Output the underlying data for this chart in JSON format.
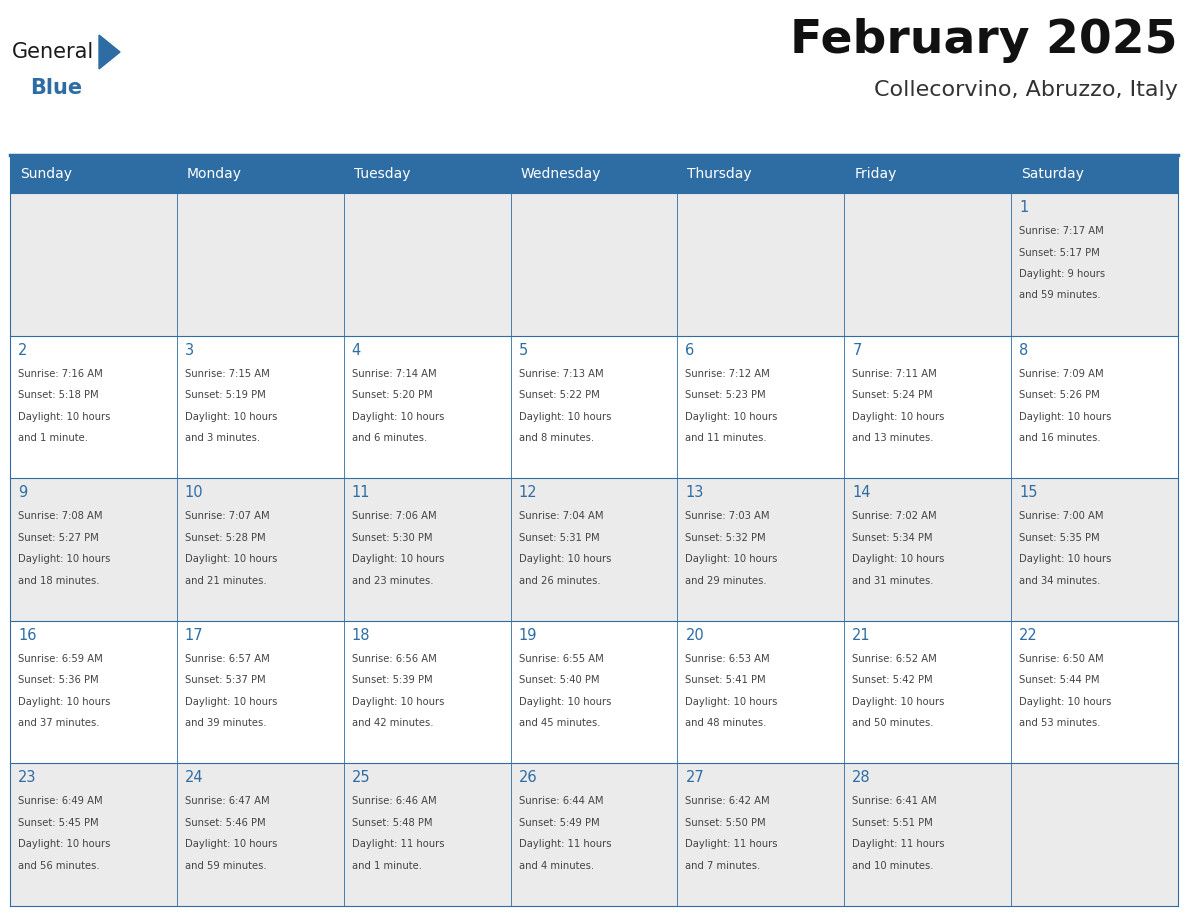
{
  "title": "February 2025",
  "subtitle": "Collecorvino, Abruzzo, Italy",
  "header_bg": "#2E6DA4",
  "header_text_color": "#FFFFFF",
  "days_of_week": [
    "Sunday",
    "Monday",
    "Tuesday",
    "Wednesday",
    "Thursday",
    "Friday",
    "Saturday"
  ],
  "row1_bg": "#EBEBEB",
  "row2_bg": "#FFFFFF",
  "cell_border_color": "#2E6DA4",
  "day_num_color": "#2E6DA4",
  "info_text_color": "#444444",
  "logo_general_color": "#1a1a1a",
  "logo_blue_color": "#2E6DA4",
  "fig_width": 11.88,
  "fig_height": 9.18,
  "calendar_data": [
    [
      {
        "day": null,
        "sunrise": null,
        "sunset": null,
        "daylight": null
      },
      {
        "day": null,
        "sunrise": null,
        "sunset": null,
        "daylight": null
      },
      {
        "day": null,
        "sunrise": null,
        "sunset": null,
        "daylight": null
      },
      {
        "day": null,
        "sunrise": null,
        "sunset": null,
        "daylight": null
      },
      {
        "day": null,
        "sunrise": null,
        "sunset": null,
        "daylight": null
      },
      {
        "day": null,
        "sunrise": null,
        "sunset": null,
        "daylight": null
      },
      {
        "day": 1,
        "sunrise": "7:17 AM",
        "sunset": "5:17 PM",
        "daylight": "9 hours and 59 minutes."
      }
    ],
    [
      {
        "day": 2,
        "sunrise": "7:16 AM",
        "sunset": "5:18 PM",
        "daylight": "10 hours and 1 minute."
      },
      {
        "day": 3,
        "sunrise": "7:15 AM",
        "sunset": "5:19 PM",
        "daylight": "10 hours and 3 minutes."
      },
      {
        "day": 4,
        "sunrise": "7:14 AM",
        "sunset": "5:20 PM",
        "daylight": "10 hours and 6 minutes."
      },
      {
        "day": 5,
        "sunrise": "7:13 AM",
        "sunset": "5:22 PM",
        "daylight": "10 hours and 8 minutes."
      },
      {
        "day": 6,
        "sunrise": "7:12 AM",
        "sunset": "5:23 PM",
        "daylight": "10 hours and 11 minutes."
      },
      {
        "day": 7,
        "sunrise": "7:11 AM",
        "sunset": "5:24 PM",
        "daylight": "10 hours and 13 minutes."
      },
      {
        "day": 8,
        "sunrise": "7:09 AM",
        "sunset": "5:26 PM",
        "daylight": "10 hours and 16 minutes."
      }
    ],
    [
      {
        "day": 9,
        "sunrise": "7:08 AM",
        "sunset": "5:27 PM",
        "daylight": "10 hours and 18 minutes."
      },
      {
        "day": 10,
        "sunrise": "7:07 AM",
        "sunset": "5:28 PM",
        "daylight": "10 hours and 21 minutes."
      },
      {
        "day": 11,
        "sunrise": "7:06 AM",
        "sunset": "5:30 PM",
        "daylight": "10 hours and 23 minutes."
      },
      {
        "day": 12,
        "sunrise": "7:04 AM",
        "sunset": "5:31 PM",
        "daylight": "10 hours and 26 minutes."
      },
      {
        "day": 13,
        "sunrise": "7:03 AM",
        "sunset": "5:32 PM",
        "daylight": "10 hours and 29 minutes."
      },
      {
        "day": 14,
        "sunrise": "7:02 AM",
        "sunset": "5:34 PM",
        "daylight": "10 hours and 31 minutes."
      },
      {
        "day": 15,
        "sunrise": "7:00 AM",
        "sunset": "5:35 PM",
        "daylight": "10 hours and 34 minutes."
      }
    ],
    [
      {
        "day": 16,
        "sunrise": "6:59 AM",
        "sunset": "5:36 PM",
        "daylight": "10 hours and 37 minutes."
      },
      {
        "day": 17,
        "sunrise": "6:57 AM",
        "sunset": "5:37 PM",
        "daylight": "10 hours and 39 minutes."
      },
      {
        "day": 18,
        "sunrise": "6:56 AM",
        "sunset": "5:39 PM",
        "daylight": "10 hours and 42 minutes."
      },
      {
        "day": 19,
        "sunrise": "6:55 AM",
        "sunset": "5:40 PM",
        "daylight": "10 hours and 45 minutes."
      },
      {
        "day": 20,
        "sunrise": "6:53 AM",
        "sunset": "5:41 PM",
        "daylight": "10 hours and 48 minutes."
      },
      {
        "day": 21,
        "sunrise": "6:52 AM",
        "sunset": "5:42 PM",
        "daylight": "10 hours and 50 minutes."
      },
      {
        "day": 22,
        "sunrise": "6:50 AM",
        "sunset": "5:44 PM",
        "daylight": "10 hours and 53 minutes."
      }
    ],
    [
      {
        "day": 23,
        "sunrise": "6:49 AM",
        "sunset": "5:45 PM",
        "daylight": "10 hours and 56 minutes."
      },
      {
        "day": 24,
        "sunrise": "6:47 AM",
        "sunset": "5:46 PM",
        "daylight": "10 hours and 59 minutes."
      },
      {
        "day": 25,
        "sunrise": "6:46 AM",
        "sunset": "5:48 PM",
        "daylight": "11 hours and 1 minute."
      },
      {
        "day": 26,
        "sunrise": "6:44 AM",
        "sunset": "5:49 PM",
        "daylight": "11 hours and 4 minutes."
      },
      {
        "day": 27,
        "sunrise": "6:42 AM",
        "sunset": "5:50 PM",
        "daylight": "11 hours and 7 minutes."
      },
      {
        "day": 28,
        "sunrise": "6:41 AM",
        "sunset": "5:51 PM",
        "daylight": "11 hours and 10 minutes."
      },
      {
        "day": null,
        "sunrise": null,
        "sunset": null,
        "daylight": null
      }
    ]
  ]
}
